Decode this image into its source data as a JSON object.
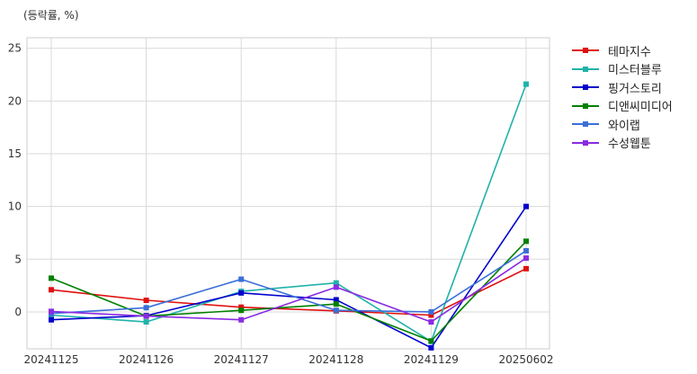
{
  "chart_data": {
    "type": "line",
    "unit_label": "(등락률, %)",
    "categories": [
      "20241125",
      "20241126",
      "20241127",
      "20241128",
      "20241129",
      "20250602"
    ],
    "ylim": [
      -3.5,
      26
    ],
    "yticks": [
      0,
      5,
      10,
      15,
      20,
      25
    ],
    "grid": true,
    "legend_position": "outside-right",
    "series": [
      {
        "name": "테마지수",
        "color": "#e01010",
        "values": [
          2.1,
          1.1,
          0.45,
          0.1,
          -0.3,
          4.1
        ]
      },
      {
        "name": "미스터블루",
        "color": "#20b2aa",
        "values": [
          -0.3,
          -0.95,
          1.95,
          2.75,
          -2.8,
          21.6
        ]
      },
      {
        "name": "핑거스토리",
        "color": "#0000cd",
        "values": [
          -0.75,
          -0.35,
          1.8,
          1.15,
          -3.4,
          10.0
        ]
      },
      {
        "name": "디앤씨미디어",
        "color": "#008000",
        "values": [
          3.2,
          -0.4,
          0.15,
          0.75,
          -2.75,
          6.7
        ]
      },
      {
        "name": "와이랩",
        "color": "#3a6fd8",
        "values": [
          -0.15,
          0.4,
          3.1,
          0.15,
          0.0,
          5.8
        ]
      },
      {
        "name": "수성웹툰",
        "color": "#8a2be2",
        "values": [
          0.05,
          -0.4,
          -0.75,
          2.35,
          -0.95,
          5.1
        ]
      }
    ]
  }
}
